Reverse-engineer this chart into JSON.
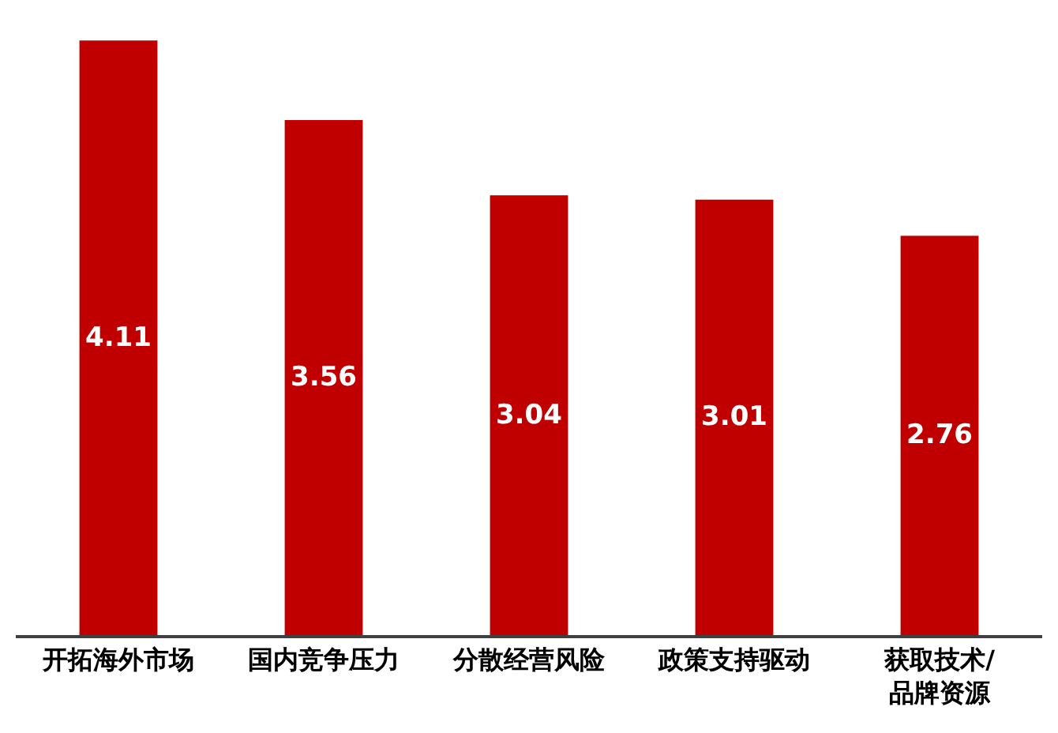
{
  "chart_data": {
    "type": "bar",
    "categories": [
      "开拓海外市场",
      "国内竞争压力",
      "分散经营风险",
      "政策支持驱动",
      "获取技术/\n品牌资源"
    ],
    "values": [
      4.11,
      3.56,
      3.04,
      3.01,
      2.76
    ],
    "color": "#c00000",
    "data_labels": true,
    "ylim": [
      0,
      4.15
    ],
    "tick_labels": "x",
    "legend": false
  }
}
